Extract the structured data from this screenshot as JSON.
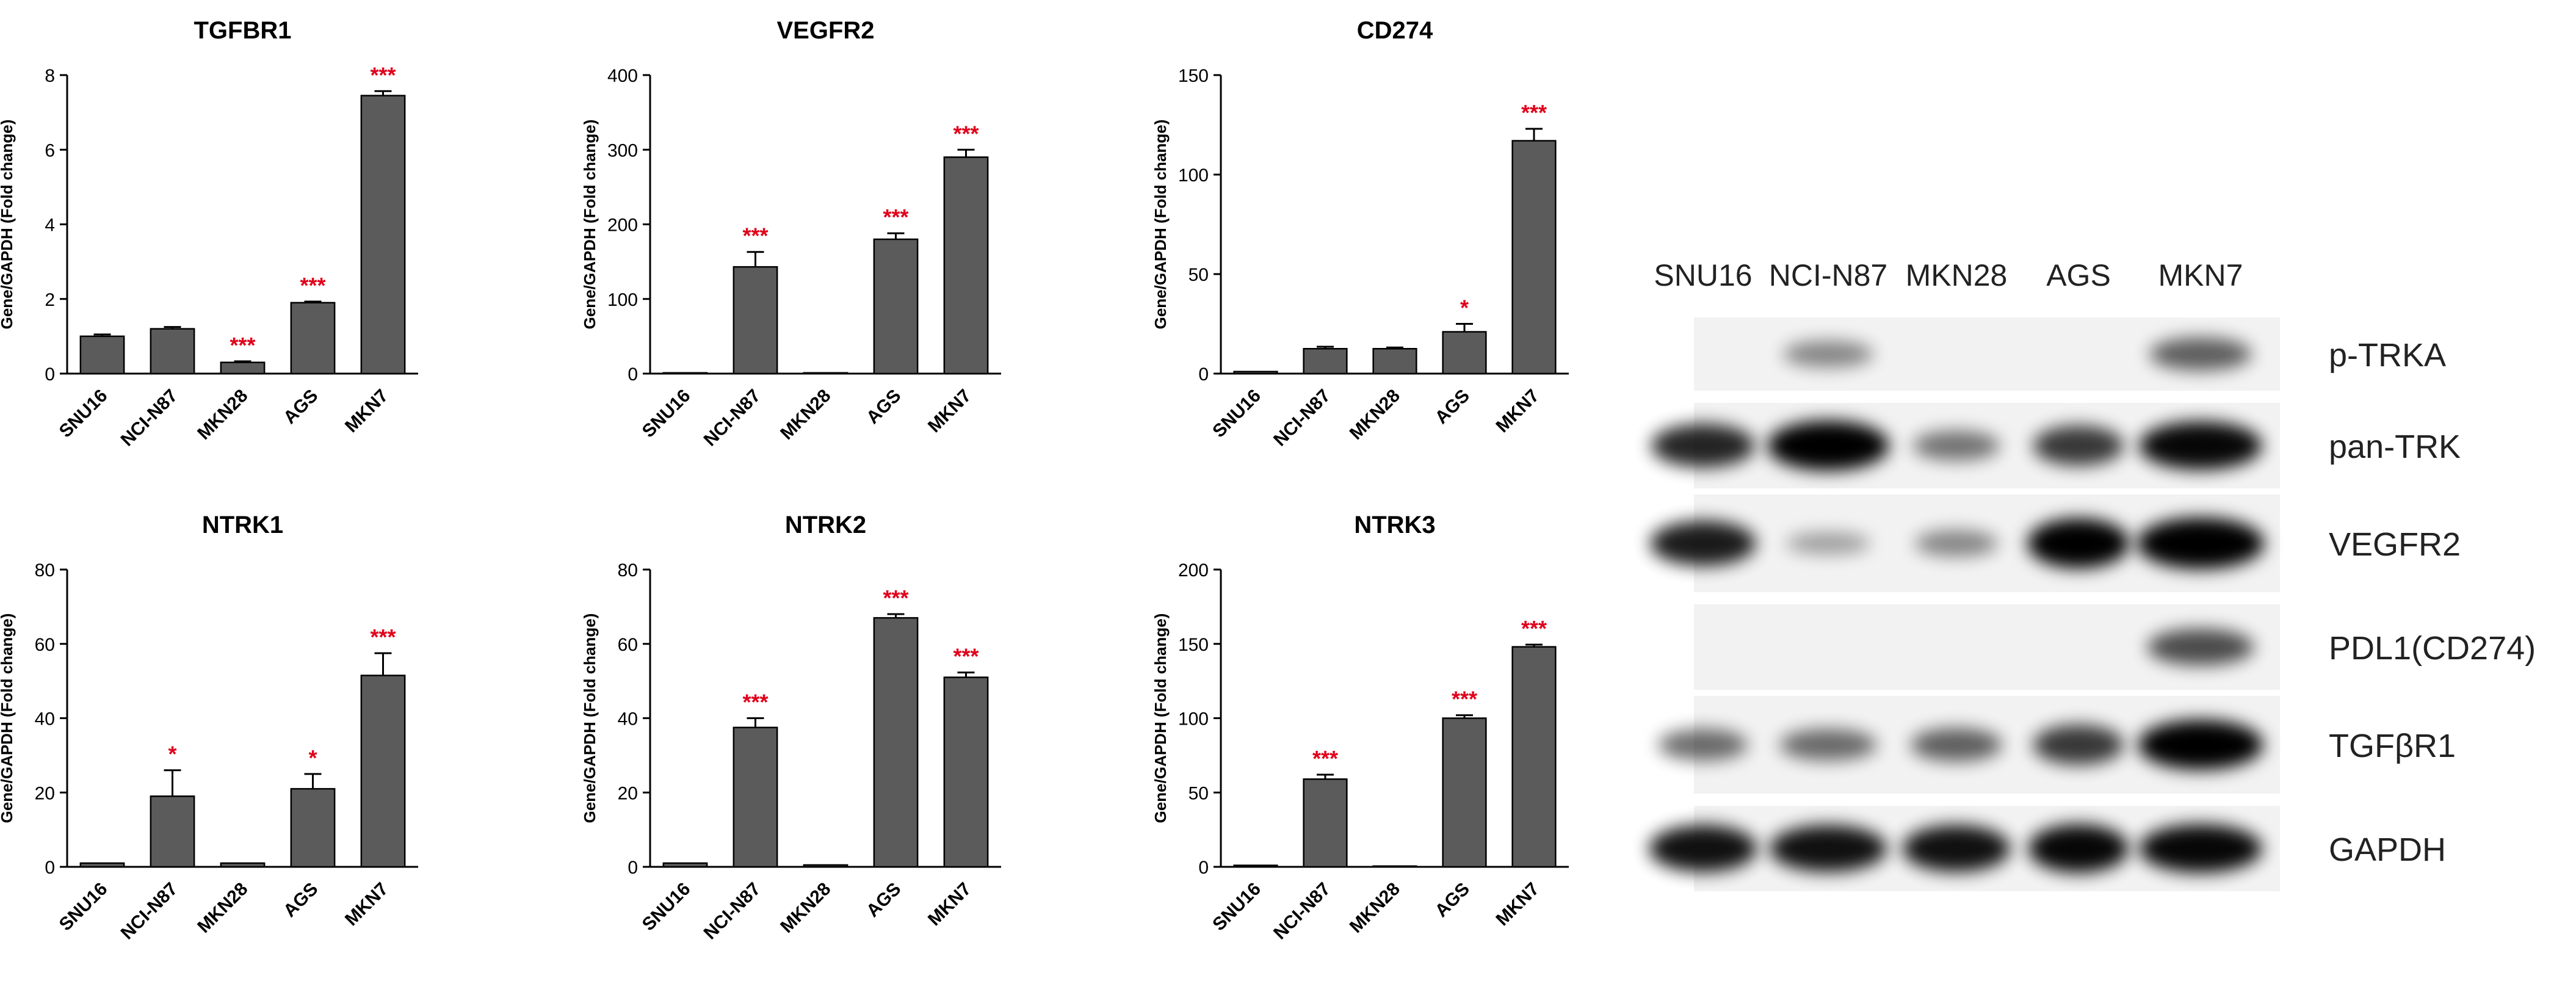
{
  "colors": {
    "bar": "#5b5b5b",
    "axis": "#000000",
    "significance": "#e0001b",
    "blot_background": "#f2f2f2"
  },
  "chart_data": [
    {
      "type": "bar",
      "title": "TGFBR1",
      "ylabel": "Gene/GAPDH (Fold change)",
      "xlabel": "",
      "categories": [
        "SNU16",
        "NCI-N87",
        "MKN28",
        "AGS",
        "MKN7"
      ],
      "values": [
        1.0,
        1.2,
        0.3,
        1.9,
        7.45
      ],
      "errors": [
        0.05,
        0.05,
        0.03,
        0.03,
        0.12
      ],
      "significance": [
        "",
        "",
        "***",
        "***",
        "***"
      ],
      "ylim": [
        0,
        8
      ],
      "yticks": [
        0,
        2,
        4,
        6,
        8
      ]
    },
    {
      "type": "bar",
      "title": "VEGFR2",
      "ylabel": "Gene/GAPDH (Fold change)",
      "xlabel": "",
      "categories": [
        "SNU16",
        "NCI-N87",
        "MKN28",
        "AGS",
        "MKN7"
      ],
      "values": [
        1,
        143,
        1,
        180,
        290
      ],
      "errors": [
        0,
        20,
        0,
        8,
        10
      ],
      "significance": [
        "",
        "***",
        "",
        "***",
        "***"
      ],
      "ylim": [
        0,
        400
      ],
      "yticks": [
        0,
        100,
        200,
        300,
        400
      ]
    },
    {
      "type": "bar",
      "title": "CD274",
      "ylabel": "Gene/GAPDH (Fold change)",
      "xlabel": "",
      "categories": [
        "SNU16",
        "NCI-N87",
        "MKN28",
        "AGS",
        "MKN7"
      ],
      "values": [
        1,
        12.5,
        12.5,
        21,
        117
      ],
      "errors": [
        0,
        1,
        0.6,
        4,
        6
      ],
      "significance": [
        "",
        "",
        "",
        "*",
        "***"
      ],
      "ylim": [
        0,
        150
      ],
      "yticks": [
        0,
        50,
        100,
        150
      ]
    },
    {
      "type": "bar",
      "title": "NTRK1",
      "ylabel": "Gene/GAPDH (Fold change)",
      "xlabel": "",
      "categories": [
        "SNU16",
        "NCI-N87",
        "MKN28",
        "AGS",
        "MKN7"
      ],
      "values": [
        1,
        19,
        1,
        21,
        51.5
      ],
      "errors": [
        0,
        7,
        0,
        4,
        6
      ],
      "significance": [
        "",
        "*",
        "",
        "*",
        "***"
      ],
      "ylim": [
        0,
        80
      ],
      "yticks": [
        0,
        20,
        40,
        60,
        80
      ]
    },
    {
      "type": "bar",
      "title": "NTRK2",
      "ylabel": "Gene/GAPDH (Fold change)",
      "xlabel": "",
      "categories": [
        "SNU16",
        "NCI-N87",
        "MKN28",
        "AGS",
        "MKN7"
      ],
      "values": [
        1,
        37.5,
        0.5,
        67,
        51
      ],
      "errors": [
        0,
        2.5,
        0,
        1,
        1.3
      ],
      "significance": [
        "",
        "***",
        "",
        "***",
        "***"
      ],
      "ylim": [
        0,
        80
      ],
      "yticks": [
        0,
        20,
        40,
        60,
        80
      ]
    },
    {
      "type": "bar",
      "title": "NTRK3",
      "ylabel": "Gene/GAPDH (Fold change)",
      "xlabel": "",
      "categories": [
        "SNU16",
        "NCI-N87",
        "MKN28",
        "AGS",
        "MKN7"
      ],
      "values": [
        1,
        59,
        0.5,
        100,
        148
      ],
      "errors": [
        0,
        3,
        0,
        2,
        1.5
      ],
      "significance": [
        "",
        "***",
        "",
        "***",
        "***"
      ],
      "ylim": [
        0,
        200
      ],
      "yticks": [
        0,
        50,
        100,
        150,
        200
      ]
    }
  ],
  "western_blot": {
    "lanes": [
      "SNU16",
      "NCI-N87",
      "MKN28",
      "AGS",
      "MKN7"
    ],
    "rows": [
      {
        "label": "p-TRKA",
        "intensities": [
          0.0,
          0.25,
          0.0,
          0.0,
          0.45
        ]
      },
      {
        "label": "pan-TRK",
        "intensities": [
          0.75,
          0.95,
          0.35,
          0.65,
          0.9
        ]
      },
      {
        "label": "VEGFR2",
        "intensities": [
          0.8,
          0.12,
          0.25,
          0.95,
          1.0
        ]
      },
      {
        "label": "PDL1(CD274)",
        "intensities": [
          0.0,
          0.0,
          0.0,
          0.0,
          0.55
        ]
      },
      {
        "label": "TGFβR1",
        "intensities": [
          0.4,
          0.4,
          0.45,
          0.65,
          0.95
        ]
      },
      {
        "label": "GAPDH",
        "intensities": [
          0.85,
          0.85,
          0.85,
          0.9,
          0.9
        ]
      }
    ]
  }
}
